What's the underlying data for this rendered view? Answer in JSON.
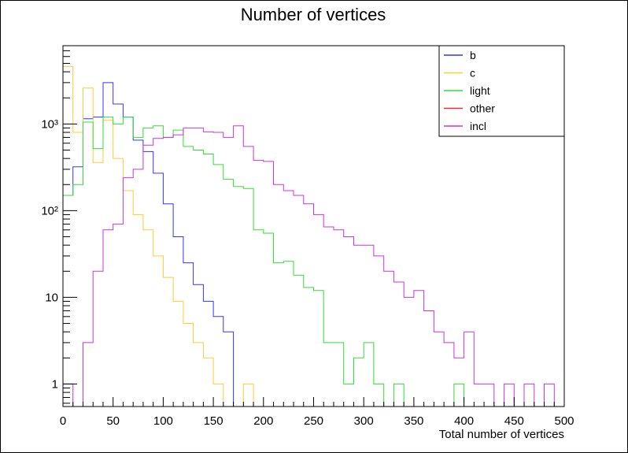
{
  "chart_data": {
    "type": "line",
    "title": "Number of vertices",
    "xlabel": "Total number of vertices",
    "ylabel": "",
    "xlim": [
      0,
      500
    ],
    "ylim": [
      0.55,
      8000
    ],
    "yscale": "log",
    "grid": false,
    "legend_position": "top-right",
    "bin_width": 10,
    "x_ticks": [
      0,
      50,
      100,
      150,
      200,
      250,
      300,
      350,
      400,
      450,
      500
    ],
    "x_tick_labels": [
      "0",
      "50",
      "100",
      "150",
      "200",
      "250",
      "300",
      "350",
      "400",
      "450",
      "500"
    ],
    "y_ticks": [
      1,
      10,
      100,
      1000
    ],
    "y_tick_labels": [
      "1",
      "10",
      "10²",
      "10³"
    ],
    "series": [
      {
        "name": "b",
        "color": "#3333ff",
        "x": [
          0,
          10,
          20,
          30,
          40,
          50,
          60,
          70,
          80,
          90,
          100,
          110,
          120,
          130,
          140,
          150,
          160,
          170,
          180,
          190,
          200
        ],
        "values": [
          150,
          320,
          1150,
          1200,
          3000,
          1700,
          1200,
          650,
          480,
          270,
          120,
          50,
          25,
          14,
          9,
          6,
          4,
          0,
          0,
          0,
          0
        ]
      },
      {
        "name": "c",
        "color": "#ffcc33",
        "x": [
          0,
          10,
          20,
          30,
          40,
          50,
          60,
          70,
          80,
          90,
          100,
          110,
          120,
          130,
          140,
          150,
          160,
          170,
          180,
          190,
          200
        ],
        "values": [
          4600,
          800,
          2600,
          360,
          1100,
          400,
          170,
          90,
          60,
          30,
          17,
          9,
          5,
          3,
          2,
          1,
          0,
          0,
          1,
          0,
          0
        ]
      },
      {
        "name": "light",
        "color": "#33dd33",
        "x": [
          0,
          10,
          20,
          30,
          40,
          50,
          60,
          70,
          80,
          90,
          100,
          110,
          120,
          130,
          140,
          150,
          160,
          170,
          180,
          190,
          200,
          210,
          220,
          230,
          240,
          250,
          260,
          270,
          280,
          290,
          300,
          310,
          320,
          330,
          340,
          350,
          360,
          370,
          380,
          390,
          400
        ],
        "values": [
          150,
          200,
          1050,
          520,
          1200,
          1000,
          1200,
          700,
          900,
          950,
          700,
          850,
          550,
          500,
          450,
          340,
          230,
          190,
          180,
          60,
          55,
          25,
          26,
          18,
          13,
          12,
          3,
          3,
          1,
          2,
          3,
          1,
          0,
          1,
          0,
          0,
          0,
          0,
          0,
          1,
          0
        ]
      },
      {
        "name": "other",
        "color": "#dd3333",
        "x": [],
        "values": []
      },
      {
        "name": "incl",
        "color": "#cc33dd",
        "x": [
          0,
          10,
          20,
          30,
          40,
          50,
          60,
          70,
          80,
          90,
          100,
          110,
          120,
          130,
          140,
          150,
          160,
          170,
          180,
          190,
          200,
          210,
          220,
          230,
          240,
          250,
          260,
          270,
          280,
          290,
          300,
          310,
          320,
          330,
          340,
          350,
          360,
          370,
          380,
          390,
          400,
          410,
          420,
          430,
          440,
          450,
          460,
          470,
          480,
          490
        ],
        "values": [
          1,
          0,
          3,
          20,
          60,
          70,
          240,
          300,
          570,
          680,
          700,
          750,
          900,
          900,
          810,
          800,
          700,
          950,
          550,
          380,
          370,
          200,
          170,
          150,
          120,
          90,
          65,
          60,
          50,
          40,
          40,
          30,
          20,
          15,
          10,
          12,
          7,
          4,
          3,
          2,
          4,
          1,
          1,
          0,
          1,
          0,
          1,
          0,
          1,
          0
        ]
      }
    ]
  }
}
